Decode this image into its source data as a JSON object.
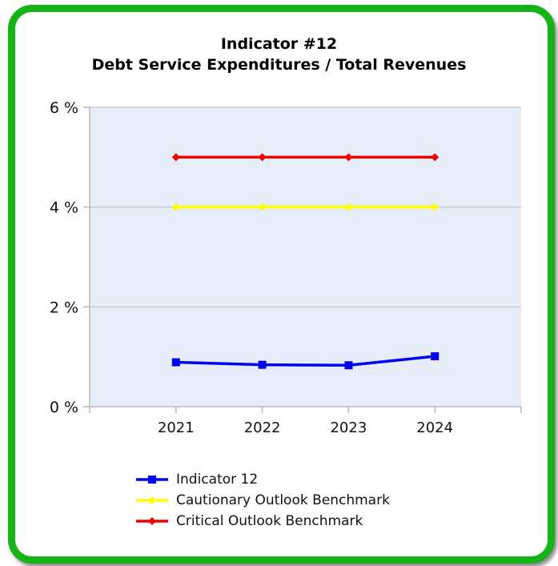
{
  "chart_data": {
    "type": "line",
    "title": "Indicator #12",
    "subtitle": "Debt Service Expenditures / Total Revenues",
    "xlabel": "",
    "ylabel": "",
    "categories": [
      "2021",
      "2022",
      "2023",
      "2024"
    ],
    "ylim": [
      0,
      6
    ],
    "yticks": [
      "0 %",
      "2 %",
      "4 %",
      "6 %"
    ],
    "grid": true,
    "legend_position": "bottom",
    "series": [
      {
        "name": "Indicator 12",
        "values": [
          0.89,
          0.84,
          0.83,
          1.01
        ],
        "color": "#0000ee",
        "marker": "square"
      },
      {
        "name": "Cautionary Outlook Benchmark",
        "values": [
          4,
          4,
          4,
          4
        ],
        "color": "#ffff00",
        "marker": "diamond"
      },
      {
        "name": "Critical Outlook Benchmark",
        "values": [
          5,
          5,
          5,
          5
        ],
        "color": "#ee0000",
        "marker": "diamond"
      }
    ],
    "plot_background": "#e6edf9",
    "frame_color": "#17b217"
  }
}
